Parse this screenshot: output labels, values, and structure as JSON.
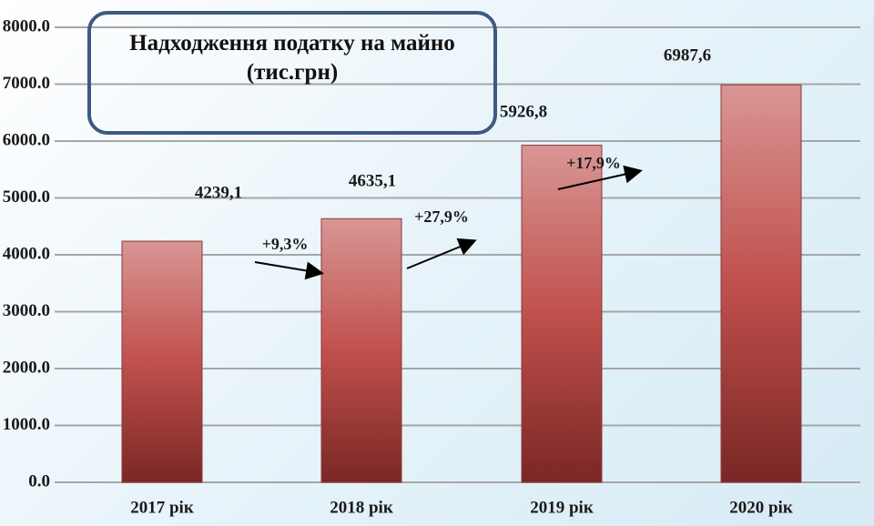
{
  "chart_data": {
    "type": "bar",
    "title": "Надходження податку на майно (тис.грн)",
    "categories": [
      "2017 рік",
      "2018 рік",
      "2019 рік",
      "2020 рік"
    ],
    "values": [
      4239.1,
      4635.1,
      5926.8,
      6987.6
    ],
    "value_labels": [
      "4239,1",
      "4635,1",
      "5926,8",
      "6987,6"
    ],
    "color": "#c0504d",
    "ylim": [
      0,
      8000
    ],
    "yticks": [
      {
        "value": 0,
        "label": "0.0"
      },
      {
        "value": 1000,
        "label": "1000.0"
      },
      {
        "value": 2000,
        "label": "2000.0"
      },
      {
        "value": 3000,
        "label": "3000.0"
      },
      {
        "value": 4000,
        "label": "4000.0"
      },
      {
        "value": 5000,
        "label": "5000.0"
      },
      {
        "value": 6000,
        "label": "6000.0"
      },
      {
        "value": 7000,
        "label": "7000.0"
      },
      {
        "value": 8000,
        "label": "8000.0"
      }
    ],
    "grid": true,
    "annotations": [
      "+9,3%",
      "+27,9%",
      "+17,9%"
    ]
  }
}
